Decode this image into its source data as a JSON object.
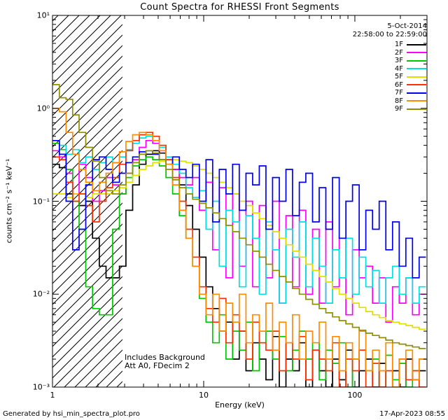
{
  "title": "Count Spectra for RHESSI Front Segments",
  "header": {
    "date": "5-Oct-2014",
    "time_range": "22:58:00 to 22:59:00"
  },
  "annotations": {
    "line1": "Includes Background",
    "line2": "Att A0, FDecim 2"
  },
  "footer": {
    "left": "Generated by hsi_min_spectra_plot.pro",
    "right": "17-Apr-2023 08:55"
  },
  "axes": {
    "xlabel": "Energy (keV)",
    "ylabel": "counts cm⁻² s⁻¹ keV⁻¹",
    "x_tick_values": [
      1,
      10,
      100
    ],
    "x_tick_labels": [
      "1",
      "10",
      "100"
    ],
    "y_tick_values": [
      0.001,
      0.01,
      0.1,
      1,
      10
    ],
    "y_tick_labels": [
      "10⁻³",
      "10⁻²",
      "10⁻¹",
      "10⁰",
      "10¹"
    ]
  },
  "chart_data": {
    "type": "line",
    "subtype": "step-histogram-spectra",
    "xscale": "log",
    "yscale": "log",
    "xlim": [
      1,
      300
    ],
    "ylim": [
      0.001,
      10
    ],
    "legend_position": "top-right-inside",
    "hatched_region": [
      1,
      2.9
    ],
    "x_bin_edges": [
      1.0,
      1.11,
      1.23,
      1.36,
      1.5,
      1.66,
      1.84,
      2.04,
      2.26,
      2.5,
      2.77,
      3.06,
      3.39,
      3.75,
      4.15,
      4.6,
      5.09,
      5.63,
      6.23,
      6.9,
      7.64,
      8.45,
      9.36,
      10.36,
      11.46,
      12.69,
      14.04,
      15.54,
      17.2,
      19.04,
      21.07,
      23.32,
      25.81,
      28.57,
      31.62,
      35.0,
      38.7,
      42.9,
      47.4,
      52.5,
      58.1,
      64.3,
      71.2,
      78.8,
      87.2,
      96.5,
      106.8,
      118.2,
      130.9,
      144.9,
      160.3,
      177.5,
      196.4,
      217.4,
      240.6,
      266.3,
      294.8
    ],
    "series": [
      {
        "name": "1F",
        "color": "#000000",
        "values": [
          0.25,
          0.23,
          0.12,
          0.1,
          0.09,
          0.1,
          0.04,
          0.02,
          0.015,
          0.015,
          0.02,
          0.08,
          0.15,
          0.25,
          0.32,
          0.35,
          0.33,
          0.28,
          0.22,
          0.15,
          0.09,
          0.05,
          0.025,
          0.012,
          0.007,
          0.004,
          0.005,
          0.002,
          0.004,
          0.0015,
          0.003,
          0.002,
          0.0012,
          0.0035,
          0.001,
          0.002,
          0.0015,
          0.003,
          0.001,
          0.0025,
          0.0015,
          0.001,
          0.002,
          0.0012,
          0.0025,
          0.001,
          0.0015,
          0.002,
          0.001,
          0.0018,
          0.0008,
          0.0015,
          0.001,
          0.002,
          0.0012,
          0.0015
        ]
      },
      {
        "name": "2F",
        "color": "#FF00FF",
        "values": [
          0.35,
          0.3,
          0.2,
          0.12,
          0.25,
          0.18,
          0.1,
          0.13,
          0.18,
          0.15,
          0.12,
          0.2,
          0.28,
          0.38,
          0.45,
          0.42,
          0.35,
          0.28,
          0.22,
          0.18,
          0.15,
          0.18,
          0.08,
          0.16,
          0.03,
          0.14,
          0.015,
          0.12,
          0.02,
          0.1,
          0.012,
          0.09,
          0.015,
          0.1,
          0.008,
          0.07,
          0.012,
          0.08,
          0.01,
          0.05,
          0.008,
          0.06,
          0.012,
          0.04,
          0.006,
          0.03,
          0.015,
          0.02,
          0.008,
          0.015,
          0.005,
          0.012,
          0.008,
          0.015,
          0.006,
          0.01
        ]
      },
      {
        "name": "3F",
        "color": "#00C800",
        "values": [
          0.42,
          0.36,
          0.22,
          0.1,
          0.05,
          0.012,
          0.007,
          0.006,
          0.006,
          0.05,
          0.12,
          0.18,
          0.24,
          0.28,
          0.3,
          0.28,
          0.24,
          0.18,
          0.12,
          0.07,
          0.04,
          0.02,
          0.009,
          0.005,
          0.003,
          0.006,
          0.002,
          0.004,
          0.0025,
          0.005,
          0.0015,
          0.003,
          0.004,
          0.002,
          0.0035,
          0.0015,
          0.0025,
          0.004,
          0.002,
          0.003,
          0.0012,
          0.0025,
          0.0018,
          0.003,
          0.001,
          0.002,
          0.0025,
          0.0015,
          0.002,
          0.001,
          0.0022,
          0.0012,
          0.0018,
          0.001,
          0.0015,
          0.002
        ]
      },
      {
        "name": "4F",
        "color": "#00E0E0",
        "values": [
          0.45,
          0.4,
          0.32,
          0.36,
          0.26,
          0.3,
          0.22,
          0.26,
          0.3,
          0.26,
          0.3,
          0.36,
          0.42,
          0.48,
          0.5,
          0.45,
          0.38,
          0.3,
          0.25,
          0.2,
          0.14,
          0.11,
          0.13,
          0.05,
          0.1,
          0.02,
          0.08,
          0.06,
          0.012,
          0.07,
          0.04,
          0.01,
          0.06,
          0.03,
          0.008,
          0.05,
          0.025,
          0.06,
          0.012,
          0.04,
          0.02,
          0.008,
          0.03,
          0.015,
          0.04,
          0.01,
          0.025,
          0.012,
          0.018,
          0.008,
          0.015,
          0.02,
          0.01,
          0.015,
          0.008,
          0.012
        ]
      },
      {
        "name": "5F",
        "color": "#E0E000",
        "values": [
          0.12,
          0.12,
          0.11,
          0.12,
          0.12,
          0.11,
          0.12,
          0.12,
          0.12,
          0.13,
          0.14,
          0.16,
          0.19,
          0.22,
          0.24,
          0.26,
          0.27,
          0.28,
          0.28,
          0.27,
          0.26,
          0.24,
          0.22,
          0.2,
          0.18,
          0.16,
          0.14,
          0.12,
          0.1,
          0.09,
          0.075,
          0.065,
          0.055,
          0.047,
          0.04,
          0.034,
          0.029,
          0.025,
          0.021,
          0.018,
          0.0155,
          0.0135,
          0.0115,
          0.01,
          0.009,
          0.008,
          0.0072,
          0.0065,
          0.006,
          0.0056,
          0.0052,
          0.005,
          0.0048,
          0.0046,
          0.0044,
          0.0042
        ]
      },
      {
        "name": "6F",
        "color": "#FF3000",
        "values": [
          0.3,
          0.28,
          0.16,
          0.1,
          0.12,
          0.09,
          0.06,
          0.1,
          0.14,
          0.18,
          0.25,
          0.35,
          0.45,
          0.52,
          0.55,
          0.5,
          0.4,
          0.28,
          0.18,
          0.1,
          0.05,
          0.025,
          0.012,
          0.007,
          0.005,
          0.009,
          0.003,
          0.006,
          0.004,
          0.002,
          0.005,
          0.003,
          0.0025,
          0.004,
          0.0015,
          0.003,
          0.002,
          0.0035,
          0.0012,
          0.0025,
          0.002,
          0.0015,
          0.003,
          0.001,
          0.002,
          0.0015,
          0.0025,
          0.001,
          0.0018,
          0.001,
          0.0015,
          0.0008,
          0.002,
          0.0012,
          0.0015,
          0.001
        ]
      },
      {
        "name": "7F",
        "color": "#0000F0",
        "values": [
          0.45,
          0.32,
          0.1,
          0.03,
          0.05,
          0.15,
          0.28,
          0.3,
          0.22,
          0.16,
          0.2,
          0.26,
          0.3,
          0.34,
          0.35,
          0.32,
          0.28,
          0.25,
          0.3,
          0.22,
          0.18,
          0.25,
          0.1,
          0.28,
          0.06,
          0.22,
          0.12,
          0.25,
          0.08,
          0.2,
          0.15,
          0.24,
          0.05,
          0.18,
          0.1,
          0.22,
          0.07,
          0.16,
          0.2,
          0.06,
          0.14,
          0.05,
          0.18,
          0.04,
          0.1,
          0.15,
          0.03,
          0.08,
          0.05,
          0.1,
          0.03,
          0.06,
          0.02,
          0.04,
          0.015,
          0.025
        ]
      },
      {
        "name": "8F",
        "color": "#FF8C00",
        "values": [
          1.0,
          0.92,
          0.55,
          0.32,
          0.22,
          0.16,
          0.13,
          0.16,
          0.2,
          0.26,
          0.34,
          0.44,
          0.52,
          0.55,
          0.52,
          0.45,
          0.35,
          0.25,
          0.15,
          0.08,
          0.04,
          0.02,
          0.01,
          0.006,
          0.01,
          0.004,
          0.008,
          0.005,
          0.01,
          0.003,
          0.006,
          0.004,
          0.008,
          0.0025,
          0.005,
          0.003,
          0.006,
          0.002,
          0.004,
          0.003,
          0.005,
          0.002,
          0.0035,
          0.0015,
          0.003,
          0.002,
          0.004,
          0.0015,
          0.0025,
          0.0015,
          0.003,
          0.001,
          0.002,
          0.0025,
          0.0012,
          0.002
        ]
      },
      {
        "name": "9F",
        "color": "#8F8F00",
        "values": [
          1.8,
          1.3,
          1.25,
          0.85,
          0.55,
          0.38,
          0.27,
          0.18,
          0.13,
          0.12,
          0.15,
          0.2,
          0.26,
          0.32,
          0.35,
          0.33,
          0.28,
          0.22,
          0.17,
          0.14,
          0.12,
          0.105,
          0.095,
          0.085,
          0.075,
          0.065,
          0.055,
          0.047,
          0.04,
          0.034,
          0.029,
          0.025,
          0.021,
          0.018,
          0.0155,
          0.0135,
          0.0115,
          0.01,
          0.0088,
          0.0078,
          0.007,
          0.0063,
          0.0057,
          0.0052,
          0.0048,
          0.0044,
          0.0041,
          0.0038,
          0.0036,
          0.0034,
          0.0032,
          0.003,
          0.0029,
          0.0028,
          0.0027,
          0.0026
        ]
      }
    ]
  }
}
